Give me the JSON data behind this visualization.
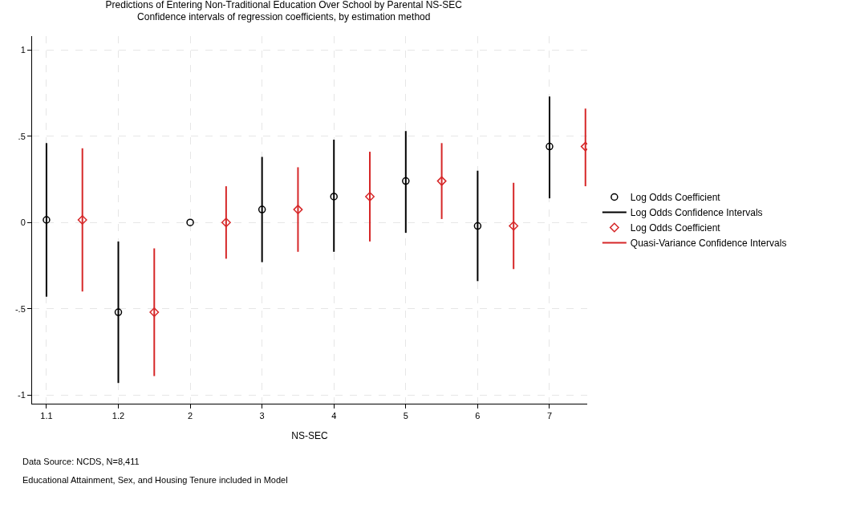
{
  "chart_data": {
    "type": "scatter",
    "title": "Predictions of Entering Non-Traditional Education Over School by Parental NS-SEC",
    "subtitle": "Confidence intervals of regression coefficients, by estimation method",
    "xlabel": "NS-SEC",
    "categories": [
      "1.1",
      null,
      "1.2",
      null,
      "2",
      null,
      "3",
      null,
      "4",
      null,
      "5",
      null,
      "6",
      null,
      "7",
      null
    ],
    "ylim": [
      -1.05,
      1.08
    ],
    "yticks": [
      {
        "value": -1,
        "label": "-1"
      },
      {
        "value": -0.5,
        "label": "-.5"
      },
      {
        "value": 0,
        "label": "0"
      },
      {
        "value": 0.5,
        "label": ".5"
      },
      {
        "value": 1,
        "label": "1"
      }
    ],
    "grid": true,
    "legend": "right",
    "series": [
      {
        "name": "Log Odds Coefficient",
        "marker": "circle",
        "color": "#000000",
        "values": [
          0.015,
          null,
          -0.52,
          null,
          0,
          null,
          0.075,
          null,
          0.15,
          null,
          0.24,
          null,
          -0.02,
          null,
          0.44,
          null
        ],
        "errors": [
          [
            -0.43,
            0.46
          ],
          null,
          [
            -0.93,
            -0.11
          ],
          null,
          null,
          null,
          [
            -0.23,
            0.38
          ],
          null,
          [
            -0.17,
            0.48
          ],
          null,
          [
            -0.06,
            0.53
          ],
          null,
          [
            -0.34,
            0.3
          ],
          null,
          [
            0.14,
            0.73
          ],
          null
        ]
      },
      {
        "name": "Log Odds Confidence Intervals",
        "type": "line",
        "color": "#000000",
        "values": [
          null,
          null,
          null,
          null,
          null,
          null,
          null,
          null,
          null,
          null,
          null,
          null,
          null,
          null,
          null,
          null
        ]
      },
      {
        "name": "Log Odds Coefficient",
        "marker": "diamond",
        "color": "#d62728",
        "values": [
          null,
          0.015,
          null,
          -0.52,
          null,
          0,
          null,
          0.075,
          null,
          0.15,
          null,
          0.24,
          null,
          -0.02,
          null,
          0.44
        ],
        "errors": [
          null,
          [
            -0.4,
            0.43
          ],
          null,
          [
            -0.89,
            -0.15
          ],
          null,
          [
            -0.21,
            0.21
          ],
          null,
          [
            -0.17,
            0.32
          ],
          null,
          [
            -0.11,
            0.41
          ],
          null,
          [
            0.02,
            0.46
          ],
          null,
          [
            -0.27,
            0.23
          ],
          null,
          [
            0.21,
            0.66
          ]
        ]
      },
      {
        "name": "Quasi-Variance Confidence Intervals",
        "type": "line",
        "color": "#d62728",
        "values": [
          null,
          null,
          null,
          null,
          null,
          null,
          null,
          null,
          null,
          null,
          null,
          null,
          null,
          null,
          null,
          null
        ]
      }
    ],
    "annotations": [
      "Data Source: NCDS, N=8,411",
      "Educational Attainment, Sex, and Housing Tenure included in Model"
    ]
  }
}
